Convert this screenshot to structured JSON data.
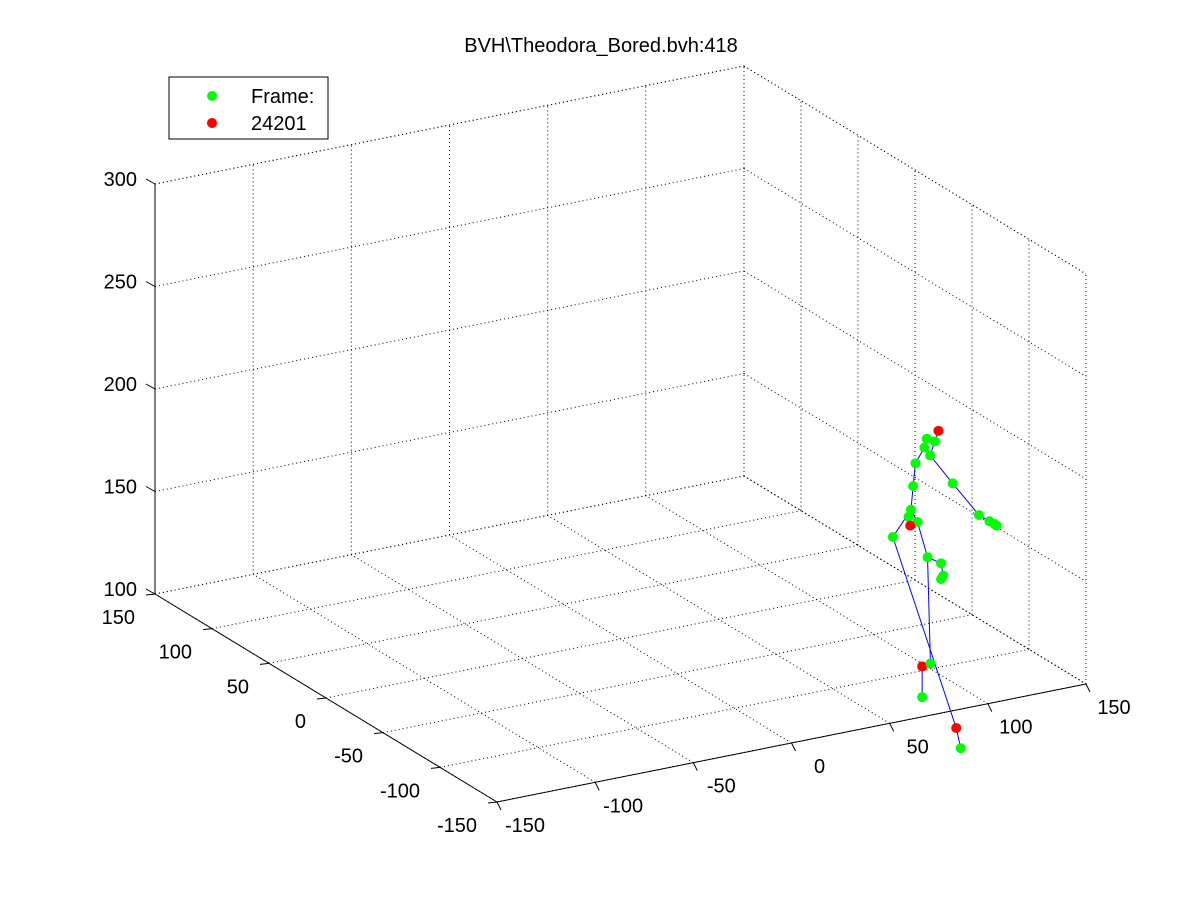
{
  "chart_data": {
    "type": "scatter",
    "title": "BVH\\Theodora_Bored.bvh:418",
    "legend": {
      "placement": "top-left",
      "entries": [
        {
          "label": "Frame:",
          "color": "#00ff00"
        },
        {
          "label": "24201",
          "color": "#ff0000"
        }
      ]
    },
    "grid": true,
    "axes": {
      "x": {
        "ticks": [
          -150,
          -100,
          -50,
          0,
          50,
          100,
          150
        ],
        "tick_labels": [
          "-150",
          "-100",
          "-50",
          "0",
          "50",
          "100",
          "150"
        ]
      },
      "y": {
        "ticks": [
          -150,
          -100,
          -50,
          0,
          50,
          100,
          150
        ],
        "tick_labels": [
          "-150",
          "-100",
          "-50",
          "0",
          "50",
          "100",
          "150"
        ]
      },
      "z": {
        "ticks": [
          100,
          150,
          200,
          250,
          300
        ],
        "tick_labels": [
          "100",
          "150",
          "200",
          "250",
          "300"
        ]
      }
    },
    "colors": {
      "green": "#00ff00",
      "red": "#ff0000",
      "bones": "#0000ff"
    },
    "joints": [
      {
        "u": 0.8415,
        "v": 0.6006,
        "c": "red"
      },
      {
        "u": 0.8376,
        "v": 0.5836,
        "c": "green"
      },
      {
        "u": 0.8289,
        "v": 0.5878,
        "c": "green"
      },
      {
        "u": 0.8264,
        "v": 0.5736,
        "c": "green"
      },
      {
        "u": 0.8168,
        "v": 0.548,
        "c": "green"
      },
      {
        "u": 0.8326,
        "v": 0.5608,
        "c": "green"
      },
      {
        "u": 0.8143,
        "v": 0.5111,
        "c": "green"
      },
      {
        "u": 0.8568,
        "v": 0.5155,
        "c": "green"
      },
      {
        "u": 0.812,
        "v": 0.4728,
        "c": "green"
      },
      {
        "u": 0.8094,
        "v": 0.4615,
        "c": "green"
      },
      {
        "u": 0.819,
        "v": 0.453,
        "c": "green"
      },
      {
        "u": 0.8112,
        "v": 0.4473,
        "c": "red"
      },
      {
        "u": 0.7925,
        "v": 0.4288,
        "c": "green"
      },
      {
        "u": 0.885,
        "v": 0.4643,
        "c": "green"
      },
      {
        "u": 0.8963,
        "v": 0.4543,
        "c": "green"
      },
      {
        "u": 0.9015,
        "v": 0.4501,
        "c": "green"
      },
      {
        "u": 0.9039,
        "v": 0.4473,
        "c": "green"
      },
      {
        "u": 0.8298,
        "v": 0.3961,
        "c": "green"
      },
      {
        "u": 0.8443,
        "v": 0.3862,
        "c": "green"
      },
      {
        "u": 0.8467,
        "v": 0.3663,
        "c": "green"
      },
      {
        "u": 0.8443,
        "v": 0.3606,
        "c": "green"
      },
      {
        "u": 0.824,
        "v": 0.2194,
        "c": "red"
      },
      {
        "u": 0.8329,
        "v": 0.224,
        "c": "green"
      },
      {
        "u": 0.824,
        "v": 0.1696,
        "c": "green"
      },
      {
        "u": 0.8606,
        "v": 0.1197,
        "c": "red"
      },
      {
        "u": 0.8654,
        "v": 0.087,
        "c": "green"
      }
    ],
    "bones": [
      [
        0,
        1
      ],
      [
        1,
        2
      ],
      [
        2,
        3
      ],
      [
        3,
        4
      ],
      [
        1,
        5
      ],
      [
        5,
        7
      ],
      [
        7,
        13
      ],
      [
        13,
        14
      ],
      [
        14,
        15
      ],
      [
        15,
        16
      ],
      [
        4,
        6
      ],
      [
        6,
        8
      ],
      [
        8,
        9
      ],
      [
        9,
        11
      ],
      [
        8,
        10
      ],
      [
        10,
        17
      ],
      [
        17,
        18
      ],
      [
        18,
        19
      ],
      [
        19,
        20
      ],
      [
        8,
        12
      ],
      [
        12,
        24
      ],
      [
        24,
        25
      ],
      [
        17,
        22
      ],
      [
        22,
        21
      ],
      [
        21,
        23
      ]
    ]
  },
  "colors": {
    "background": "#ffffff"
  }
}
